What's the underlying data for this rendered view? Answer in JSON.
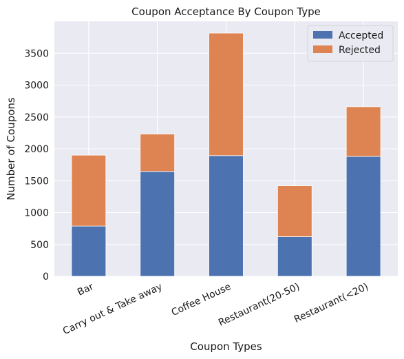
{
  "chart_data": {
    "type": "bar",
    "stacked": true,
    "title": "Coupon Acceptance By Coupon Type",
    "xlabel": "Coupon Types",
    "ylabel": "Number of Coupons",
    "categories": [
      "Bar",
      "Carry out & Take away",
      "Coffee House",
      "Restaurant(20-50)",
      "Restaurant(<20)"
    ],
    "series": [
      {
        "name": "Accepted",
        "color": "#4c72b0",
        "values": [
          788,
          1645,
          1894,
          622,
          1881
        ]
      },
      {
        "name": "Rejected",
        "color": "#dd8452",
        "values": [
          1113,
          587,
          1922,
          799,
          780
        ]
      }
    ],
    "ylim": [
      0,
      4000
    ],
    "yticks": [
      0,
      500,
      1000,
      1500,
      2000,
      2500,
      3000,
      3500
    ],
    "ytick_labels": [
      "0",
      "500",
      "1000",
      "1500",
      "2000",
      "2500",
      "3000",
      "3500"
    ],
    "grid": true,
    "legend_position": "top-right",
    "background_color": "#eaeaf2",
    "grid_color": "#ffffff"
  }
}
